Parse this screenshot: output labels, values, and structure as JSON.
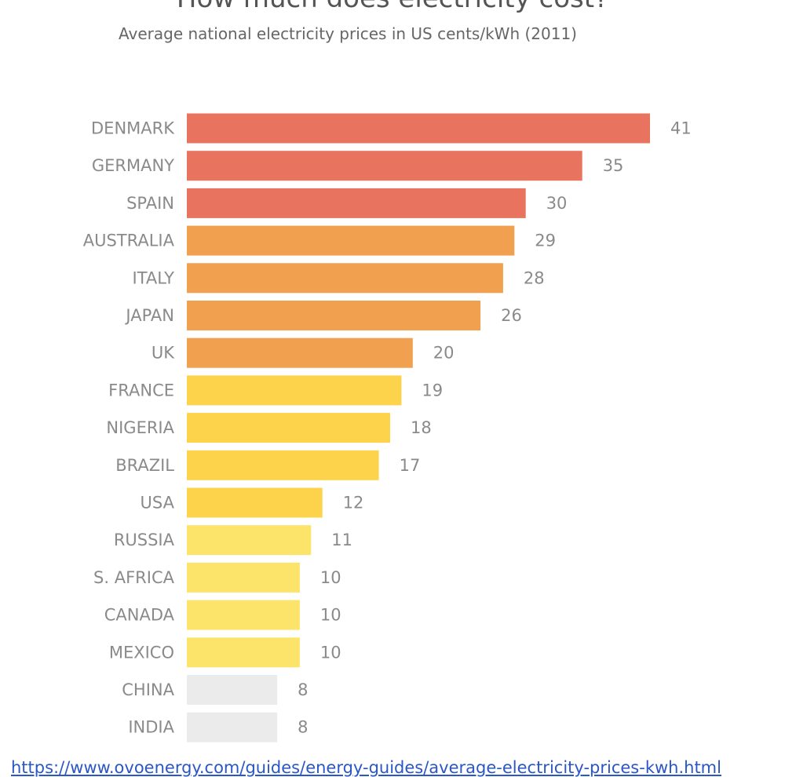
{
  "chart_data": {
    "type": "bar",
    "orientation": "horizontal",
    "title": "How much does electricity cost?",
    "subtitle": "Average national electricity prices in US cents/kWh (2011)",
    "xlabel": "",
    "ylabel": "",
    "xlim": [
      0,
      41
    ],
    "grid": false,
    "legend": "none",
    "categories": [
      "DENMARK",
      "GERMANY",
      "SPAIN",
      "AUSTRALIA",
      "ITALY",
      "JAPAN",
      "UK",
      "FRANCE",
      "NIGERIA",
      "BRAZIL",
      "USA",
      "RUSSIA",
      "S. AFRICA",
      "CANADA",
      "MEXICO",
      "CHINA",
      "INDIA"
    ],
    "values": [
      41,
      35,
      30,
      29,
      28,
      26,
      20,
      19,
      18,
      17,
      12,
      11,
      10,
      10,
      10,
      8,
      8
    ],
    "bar_colors": [
      "#e8735f",
      "#e8735f",
      "#e8735f",
      "#f0a04f",
      "#f0a04f",
      "#f0a04f",
      "#f0a04f",
      "#fcd34b",
      "#fcd34b",
      "#fcd34b",
      "#fcd34b",
      "#fce46a",
      "#fce46a",
      "#fce46a",
      "#fce46a",
      "#ebebeb",
      "#ebebeb"
    ]
  },
  "source": {
    "link_text": "https://www.ovoenergy.com/guides/energy-guides/average-electricity-prices-kwh.html"
  }
}
